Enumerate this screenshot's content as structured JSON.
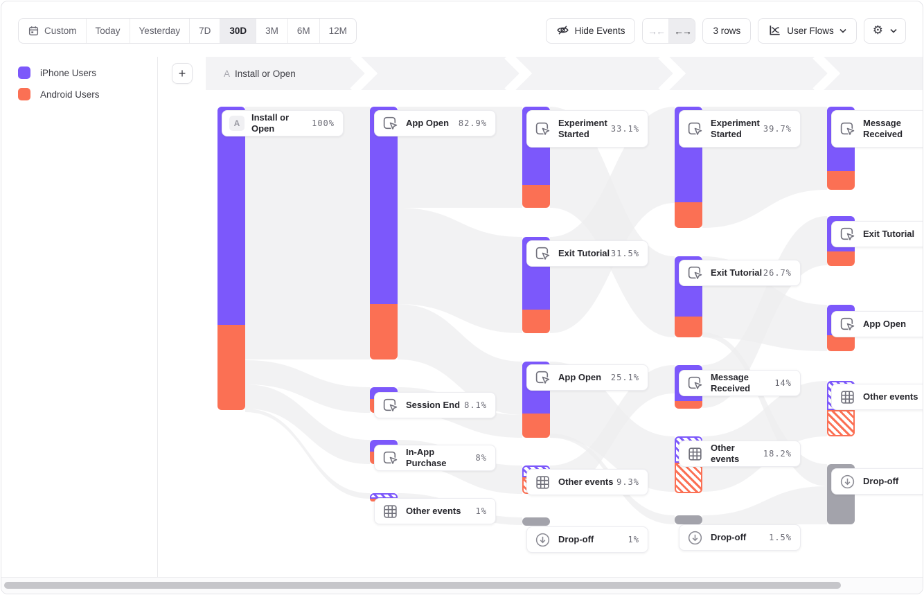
{
  "toolbar": {
    "date_ranges": [
      "Custom",
      "Today",
      "Yesterday",
      "7D",
      "30D",
      "3M",
      "6M",
      "12M"
    ],
    "active_range": "30D",
    "hide_events_label": "Hide Events",
    "collapse_glyph": "→←",
    "expand_glyph": "←→",
    "rows_label": "3 rows",
    "view_label": "User Flows",
    "gear_glyph": "⚙"
  },
  "legend": {
    "items": [
      {
        "label": "iPhone Users",
        "color": "#7c58fb"
      },
      {
        "label": "Android Users",
        "color": "#fb7054"
      }
    ]
  },
  "flow_header": {
    "step_prefix": "A",
    "step_label": "Install or Open",
    "add_button": "+"
  },
  "colors": {
    "purple": "#7c58fb",
    "orange": "#fb7054",
    "gray_bar": "#a3a3ab",
    "ribbon": "#eeeeef",
    "band": "#f3f3f5"
  },
  "flow": {
    "columns": [
      {
        "nodes": [
          {
            "label": "Install or Open",
            "pct": "100%",
            "icon": "A"
          }
        ]
      },
      {
        "nodes": [
          {
            "label": "App Open",
            "pct": "82.9%",
            "icon": "click"
          },
          {
            "label": "Session End",
            "pct": "8.1%",
            "icon": "click"
          },
          {
            "label": "In-App Purchase",
            "pct": "8%",
            "icon": "click"
          },
          {
            "label": "Other events",
            "pct": "1%",
            "icon": "grid"
          }
        ]
      },
      {
        "nodes": [
          {
            "label": "Experiment Started",
            "pct": "33.1%",
            "icon": "click"
          },
          {
            "label": "Exit Tutorial",
            "pct": "31.5%",
            "icon": "click"
          },
          {
            "label": "App Open",
            "pct": "25.1%",
            "icon": "click"
          },
          {
            "label": "Other events",
            "pct": "9.3%",
            "icon": "grid"
          },
          {
            "label": "Drop-off",
            "pct": "1%",
            "icon": "drop"
          }
        ]
      },
      {
        "nodes": [
          {
            "label": "Experiment Started",
            "pct": "39.7%",
            "icon": "click"
          },
          {
            "label": "Exit Tutorial",
            "pct": "26.7%",
            "icon": "click"
          },
          {
            "label": "Message Received",
            "pct": "14%",
            "icon": "click"
          },
          {
            "label": "Other events",
            "pct": "18.2%",
            "icon": "grid"
          },
          {
            "label": "Drop-off",
            "pct": "1.5%",
            "icon": "drop"
          }
        ]
      },
      {
        "nodes": [
          {
            "label": "Message Received",
            "pct": "",
            "icon": "click"
          },
          {
            "label": "Exit Tutorial",
            "pct": "",
            "icon": "click"
          },
          {
            "label": "App Open",
            "pct": "",
            "icon": "click"
          },
          {
            "label": "Other events",
            "pct": "",
            "icon": "grid"
          },
          {
            "label": "Drop-off",
            "pct": "",
            "icon": "drop"
          }
        ]
      }
    ]
  }
}
